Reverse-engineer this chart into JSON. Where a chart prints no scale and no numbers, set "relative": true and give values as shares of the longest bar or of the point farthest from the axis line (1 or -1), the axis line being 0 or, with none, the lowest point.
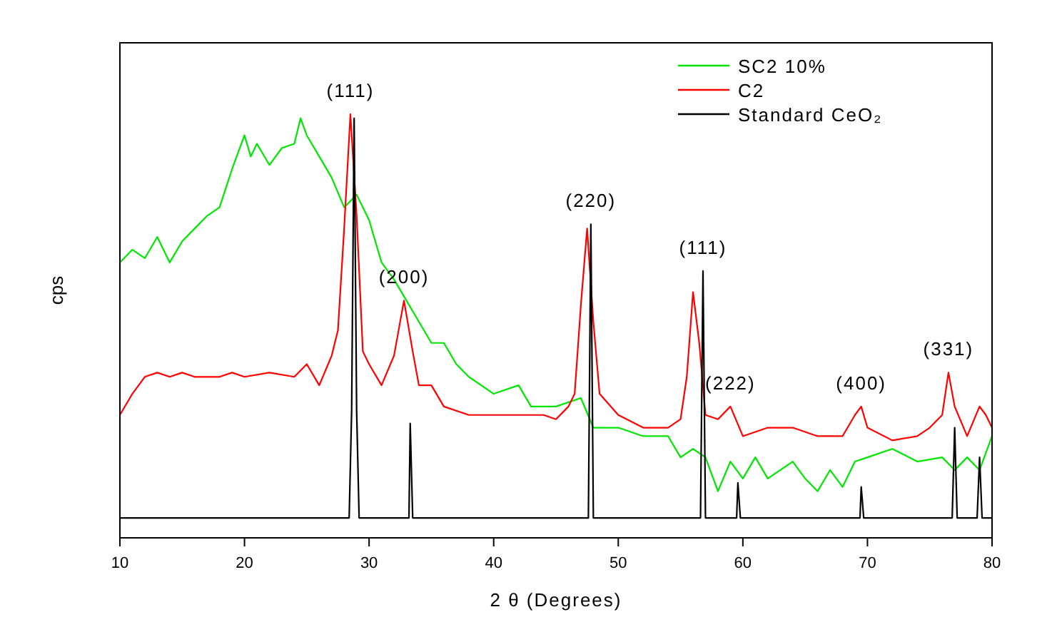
{
  "chart_data": {
    "type": "line",
    "relative": true,
    "xlabel": "2 θ (Degrees)",
    "ylabel": "cps",
    "xlim": [
      10,
      80
    ],
    "xticks": [
      10,
      20,
      30,
      40,
      50,
      60,
      70,
      80
    ],
    "grid": false,
    "legend": "top right",
    "marker": "none",
    "line_style": "solid",
    "series": [
      {
        "name": "SC2 10%",
        "color": "#00e600",
        "x": [
          10,
          11,
          12,
          13,
          14,
          15,
          16,
          17,
          18,
          19,
          20,
          20.5,
          21,
          22,
          23,
          24,
          24.5,
          25,
          26,
          27,
          28,
          29,
          30,
          31,
          32,
          33,
          34,
          35,
          36,
          37,
          38,
          39,
          40,
          42,
          43,
          45,
          47,
          48,
          50,
          52,
          54,
          55,
          56,
          57,
          58,
          59,
          60,
          61,
          62,
          64,
          65,
          66,
          67,
          68,
          69,
          70,
          72,
          74,
          76,
          77,
          78,
          79,
          80
        ],
        "values": [
          0.65,
          0.68,
          0.66,
          0.71,
          0.65,
          0.7,
          0.73,
          0.76,
          0.78,
          0.87,
          0.95,
          0.9,
          0.93,
          0.88,
          0.92,
          0.93,
          0.99,
          0.95,
          0.9,
          0.85,
          0.78,
          0.81,
          0.75,
          0.65,
          0.61,
          0.56,
          0.51,
          0.46,
          0.46,
          0.41,
          0.38,
          0.36,
          0.34,
          0.36,
          0.31,
          0.31,
          0.33,
          0.26,
          0.26,
          0.24,
          0.24,
          0.19,
          0.21,
          0.19,
          0.11,
          0.18,
          0.14,
          0.19,
          0.14,
          0.18,
          0.14,
          0.11,
          0.16,
          0.12,
          0.18,
          0.19,
          0.21,
          0.18,
          0.19,
          0.16,
          0.19,
          0.16,
          0.24
        ]
      },
      {
        "name": "C2",
        "color": "#ff0000",
        "x": [
          10,
          11,
          12,
          13,
          14,
          15,
          16,
          17,
          18,
          19,
          20,
          22,
          24,
          25,
          26,
          27,
          27.5,
          28,
          28.5,
          29,
          29.5,
          30,
          31,
          32,
          32.8,
          33.5,
          34,
          35,
          36,
          38,
          40,
          42,
          44,
          45,
          46,
          46.5,
          47,
          47.5,
          48,
          48.5,
          50,
          52,
          54,
          55,
          55.5,
          56,
          56.5,
          57,
          58,
          59,
          60,
          62,
          64,
          66,
          68,
          69,
          69.5,
          70,
          72,
          74,
          75,
          76,
          76.5,
          77,
          78,
          79,
          79.5,
          80
        ],
        "values": [
          0.29,
          0.34,
          0.38,
          0.39,
          0.38,
          0.39,
          0.38,
          0.38,
          0.38,
          0.39,
          0.38,
          0.39,
          0.38,
          0.41,
          0.36,
          0.43,
          0.49,
          0.73,
          1,
          0.76,
          0.44,
          0.41,
          0.36,
          0.43,
          0.56,
          0.44,
          0.36,
          0.36,
          0.31,
          0.29,
          0.29,
          0.29,
          0.29,
          0.28,
          0.31,
          0.34,
          0.55,
          0.73,
          0.51,
          0.34,
          0.29,
          0.26,
          0.26,
          0.28,
          0.38,
          0.58,
          0.46,
          0.29,
          0.28,
          0.31,
          0.24,
          0.26,
          0.26,
          0.24,
          0.24,
          0.29,
          0.31,
          0.26,
          0.23,
          0.24,
          0.26,
          0.29,
          0.39,
          0.31,
          0.24,
          0.31,
          0.29,
          0.26
        ]
      },
      {
        "name": "Standard CeO₂",
        "color": "#000000",
        "x": [
          10,
          28.4,
          28.6,
          28.8,
          29,
          29.2,
          33.2,
          33.3,
          33.5,
          47.6,
          47.8,
          48,
          56.6,
          56.8,
          57,
          59.5,
          59.6,
          59.8,
          69.4,
          69.5,
          69.7,
          76.8,
          77,
          77.2,
          78.8,
          79,
          79.2,
          80
        ],
        "values": [
          0.047,
          0.047,
          0.3,
          0.99,
          0.3,
          0.047,
          0.047,
          0.27,
          0.047,
          0.047,
          0.74,
          0.047,
          0.047,
          0.63,
          0.047,
          0.047,
          0.13,
          0.047,
          0.047,
          0.12,
          0.047,
          0.047,
          0.26,
          0.047,
          0.047,
          0.19,
          0.047,
          0.047
        ]
      }
    ],
    "annotations": [
      {
        "text": "(111)",
        "x": 28.5,
        "y": 1.0
      },
      {
        "text": "(200)",
        "x": 32.8,
        "y": 0.56
      },
      {
        "text": "(220)",
        "x": 47.8,
        "y": 0.74
      },
      {
        "text": "(111)",
        "x": 56.8,
        "y": 0.63
      },
      {
        "text": "(222)",
        "x": 59,
        "y": 0.31
      },
      {
        "text": "(400)",
        "x": 69.5,
        "y": 0.31
      },
      {
        "text": "(331)",
        "x": 76.5,
        "y": 0.39
      }
    ]
  }
}
